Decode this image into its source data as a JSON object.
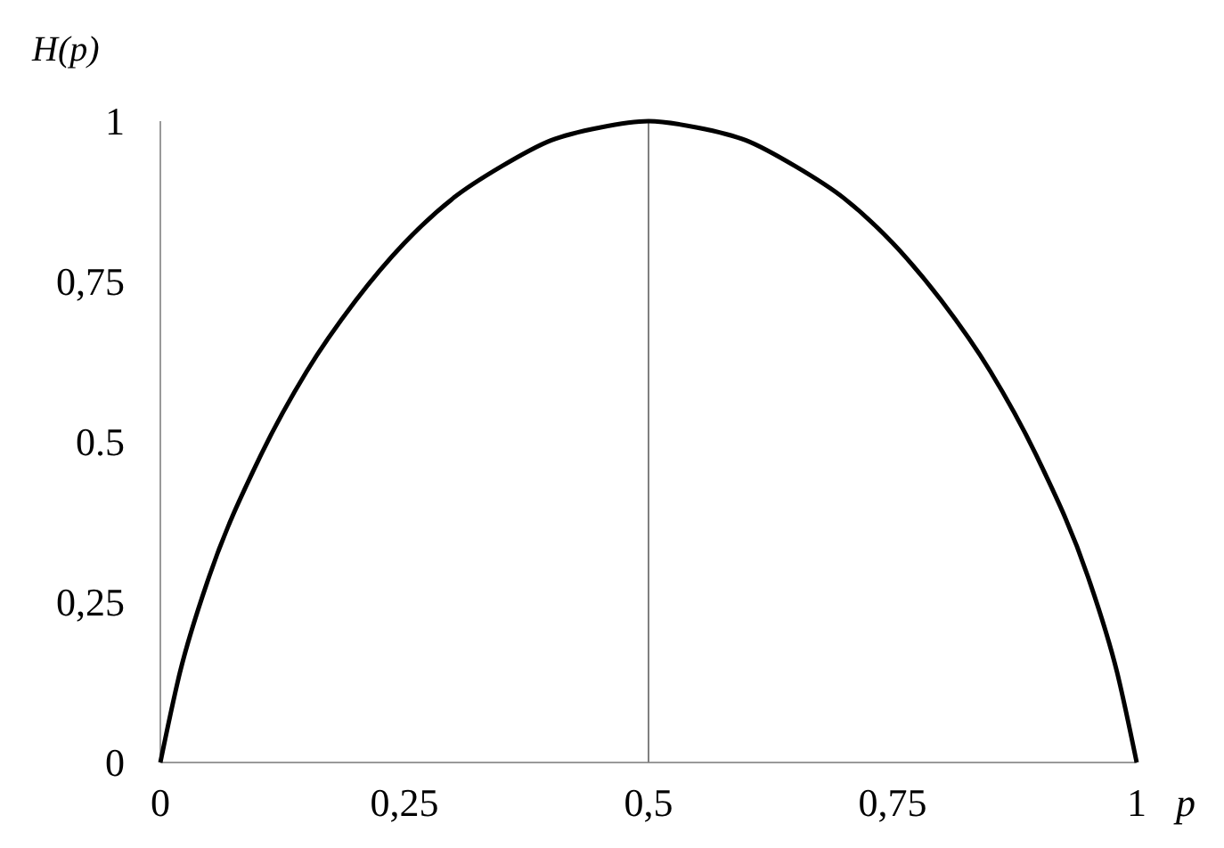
{
  "chart_data": {
    "type": "line",
    "xlabel": "p",
    "ylabel": "H(p)",
    "x": [
      0,
      0.02,
      0.05,
      0.1,
      0.15,
      0.2,
      0.25,
      0.3,
      0.35,
      0.4,
      0.45,
      0.5,
      0.55,
      0.6,
      0.65,
      0.7,
      0.75,
      0.8,
      0.85,
      0.9,
      0.95,
      0.98,
      1
    ],
    "series": [
      {
        "color": "#000000",
        "values": [
          0,
          0.14,
          0.29,
          0.47,
          0.61,
          0.72,
          0.81,
          0.88,
          0.93,
          0.97,
          0.99,
          1,
          0.99,
          0.97,
          0.93,
          0.88,
          0.81,
          0.72,
          0.61,
          0.47,
          0.29,
          0.14,
          0
        ]
      }
    ],
    "xlim": [
      0,
      1
    ],
    "ylim": [
      0,
      1
    ],
    "xticks": [
      0,
      {
        "value": 0.25,
        "label": "0,25"
      },
      {
        "value": 0.5,
        "label": "0,5"
      },
      {
        "value": 0.75,
        "label": "0,75"
      },
      1
    ],
    "yticks": [
      0,
      {
        "value": 0.25,
        "label": "0,25"
      },
      {
        "value": 0.5,
        "label": "0.5"
      },
      {
        "value": 0.75,
        "label": "0,75"
      },
      1
    ],
    "ref_lines": [
      {
        "axis": "x",
        "value": 0.5,
        "color": "#808080"
      }
    ],
    "marker": "none",
    "line_style": "solid"
  }
}
